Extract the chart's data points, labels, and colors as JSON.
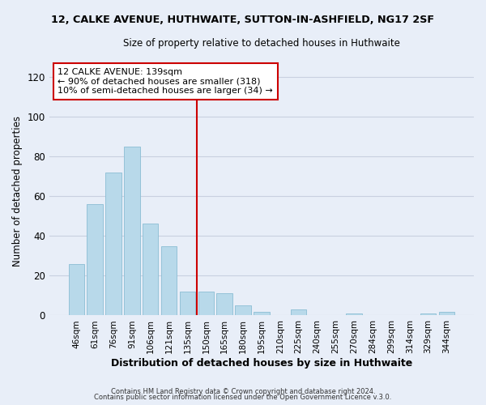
{
  "title": "12, CALKE AVENUE, HUTHWAITE, SUTTON-IN-ASHFIELD, NG17 2SF",
  "subtitle": "Size of property relative to detached houses in Huthwaite",
  "xlabel": "Distribution of detached houses by size in Huthwaite",
  "ylabel": "Number of detached properties",
  "bar_labels": [
    "46sqm",
    "61sqm",
    "76sqm",
    "91sqm",
    "106sqm",
    "121sqm",
    "135sqm",
    "150sqm",
    "165sqm",
    "180sqm",
    "195sqm",
    "210sqm",
    "225sqm",
    "240sqm",
    "255sqm",
    "270sqm",
    "284sqm",
    "299sqm",
    "314sqm",
    "329sqm",
    "344sqm"
  ],
  "bar_values": [
    26,
    56,
    72,
    85,
    46,
    35,
    12,
    12,
    11,
    5,
    2,
    0,
    3,
    0,
    0,
    1,
    0,
    0,
    0,
    1,
    2
  ],
  "bar_color": "#b8d9ea",
  "bar_edge_color": "#8bbdd4",
  "vline_color": "#cc0000",
  "annotation_title": "12 CALKE AVENUE: 139sqm",
  "annotation_line1": "← 90% of detached houses are smaller (318)",
  "annotation_line2": "10% of semi-detached houses are larger (34) →",
  "annotation_box_color": "#cc0000",
  "ylim": [
    0,
    125
  ],
  "yticks": [
    0,
    20,
    40,
    60,
    80,
    100,
    120
  ],
  "footer1": "Contains HM Land Registry data © Crown copyright and database right 2024.",
  "footer2": "Contains public sector information licensed under the Open Government Licence v.3.0.",
  "background_color": "#e8eef8",
  "grid_color": "#c8d0e0"
}
